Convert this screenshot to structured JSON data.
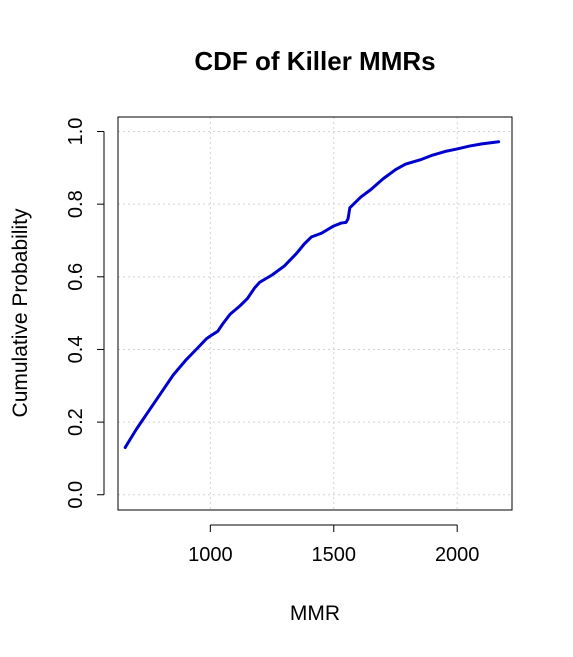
{
  "chart_data": {
    "type": "line",
    "title": "CDF of Killer MMRs",
    "xlabel": "MMR",
    "ylabel": "Cumulative Probability",
    "xlim": [
      626,
      2222
    ],
    "ylim": [
      -0.042,
      1.04
    ],
    "x_ticks": [
      1000,
      1500,
      2000
    ],
    "y_ticks": [
      0.0,
      0.2,
      0.4,
      0.6,
      0.8,
      1.0
    ],
    "x_tick_labels": [
      "1000",
      "1500",
      "2000"
    ],
    "y_tick_labels": [
      "0.0",
      "0.2",
      "0.4",
      "0.6",
      "0.8",
      "1.0"
    ],
    "grid": true,
    "series": [
      {
        "color": "#0000CD",
        "points": [
          [
            655,
            0.13
          ],
          [
            700,
            0.18
          ],
          [
            750,
            0.23
          ],
          [
            800,
            0.28
          ],
          [
            850,
            0.33
          ],
          [
            900,
            0.37
          ],
          [
            950,
            0.405
          ],
          [
            985,
            0.43
          ],
          [
            1000,
            0.437
          ],
          [
            1030,
            0.45
          ],
          [
            1050,
            0.47
          ],
          [
            1080,
            0.497
          ],
          [
            1120,
            0.52
          ],
          [
            1150,
            0.54
          ],
          [
            1180,
            0.57
          ],
          [
            1200,
            0.585
          ],
          [
            1250,
            0.605
          ],
          [
            1300,
            0.63
          ],
          [
            1350,
            0.665
          ],
          [
            1380,
            0.69
          ],
          [
            1410,
            0.71
          ],
          [
            1450,
            0.72
          ],
          [
            1500,
            0.74
          ],
          [
            1530,
            0.748
          ],
          [
            1550,
            0.75
          ],
          [
            1558,
            0.76
          ],
          [
            1565,
            0.79
          ],
          [
            1580,
            0.8
          ],
          [
            1610,
            0.82
          ],
          [
            1650,
            0.84
          ],
          [
            1700,
            0.87
          ],
          [
            1750,
            0.895
          ],
          [
            1790,
            0.91
          ],
          [
            1850,
            0.922
          ],
          [
            1900,
            0.935
          ],
          [
            1950,
            0.945
          ],
          [
            2000,
            0.952
          ],
          [
            2050,
            0.96
          ],
          [
            2100,
            0.966
          ],
          [
            2168,
            0.972
          ]
        ]
      }
    ]
  }
}
